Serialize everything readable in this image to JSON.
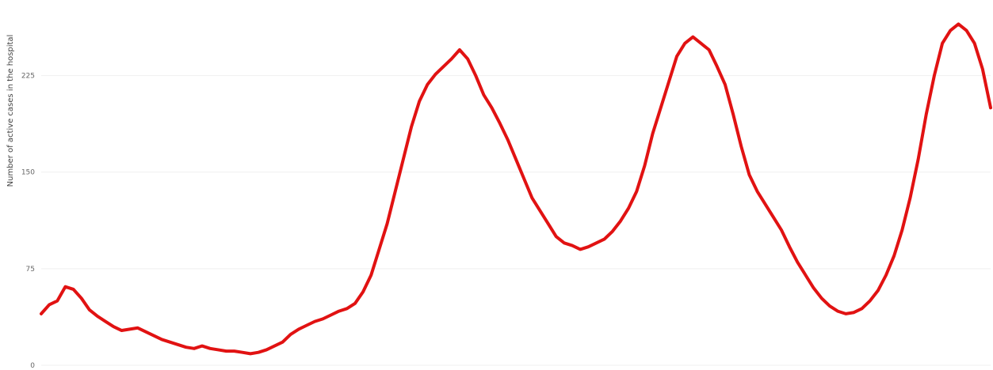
{
  "chart_data": {
    "type": "line",
    "title": "",
    "xlabel": "",
    "ylabel": "Number of active cases in the hospital",
    "ylim": [
      0,
      280
    ],
    "yticks": [
      0,
      75,
      150,
      225
    ],
    "ytick_labels": [
      "0",
      "75",
      "150",
      "225"
    ],
    "grid": true,
    "legend": "none",
    "series": [
      {
        "color": "#e11212",
        "x": [
          0,
          5,
          10,
          15,
          20,
          25,
          30,
          35,
          40,
          45,
          50,
          55,
          60,
          65,
          70,
          75,
          80,
          85,
          90,
          95,
          100,
          105,
          110,
          115,
          120,
          125,
          130,
          135,
          140,
          145,
          150,
          155,
          160,
          165,
          170,
          175,
          180,
          185,
          190,
          195,
          200,
          205,
          210,
          215,
          220,
          225,
          230,
          235,
          240,
          245,
          250,
          255,
          260,
          265,
          270,
          275,
          280,
          285,
          290,
          295,
          300,
          305,
          310,
          315,
          320,
          325,
          330,
          335,
          340,
          345,
          350,
          355,
          360,
          365,
          370,
          375,
          380,
          385,
          390,
          395,
          400,
          405,
          410,
          415,
          420,
          425,
          430,
          435,
          440,
          445,
          450,
          455,
          460,
          465,
          470,
          475,
          480,
          485,
          490,
          495,
          500,
          505,
          510,
          515,
          520,
          525,
          530,
          535,
          540,
          545,
          550,
          555,
          560,
          565,
          570,
          575,
          580,
          585,
          590
        ],
        "values": [
          40,
          47,
          50,
          61,
          59,
          52,
          43,
          38,
          34,
          30,
          27,
          28,
          29,
          26,
          23,
          20,
          18,
          16,
          14,
          13,
          15,
          13,
          12,
          11,
          11,
          10,
          9,
          10,
          12,
          15,
          18,
          24,
          28,
          31,
          34,
          36,
          39,
          42,
          44,
          48,
          57,
          70,
          90,
          110,
          135,
          160,
          185,
          205,
          218,
          226,
          232,
          238,
          245,
          238,
          225,
          210,
          200,
          188,
          175,
          160,
          145,
          130,
          120,
          110,
          100,
          95,
          93,
          90,
          92,
          95,
          98,
          104,
          112,
          122,
          135,
          155,
          180,
          200,
          220,
          240,
          250,
          255,
          250,
          245,
          232,
          218,
          195,
          170,
          148,
          135,
          125,
          115,
          105,
          92,
          80,
          70,
          60,
          52,
          46,
          42,
          40,
          41,
          44,
          50,
          58,
          70,
          85,
          105,
          130,
          160,
          195,
          225,
          250,
          260,
          265,
          260,
          250,
          230,
          200
        ]
      }
    ]
  }
}
